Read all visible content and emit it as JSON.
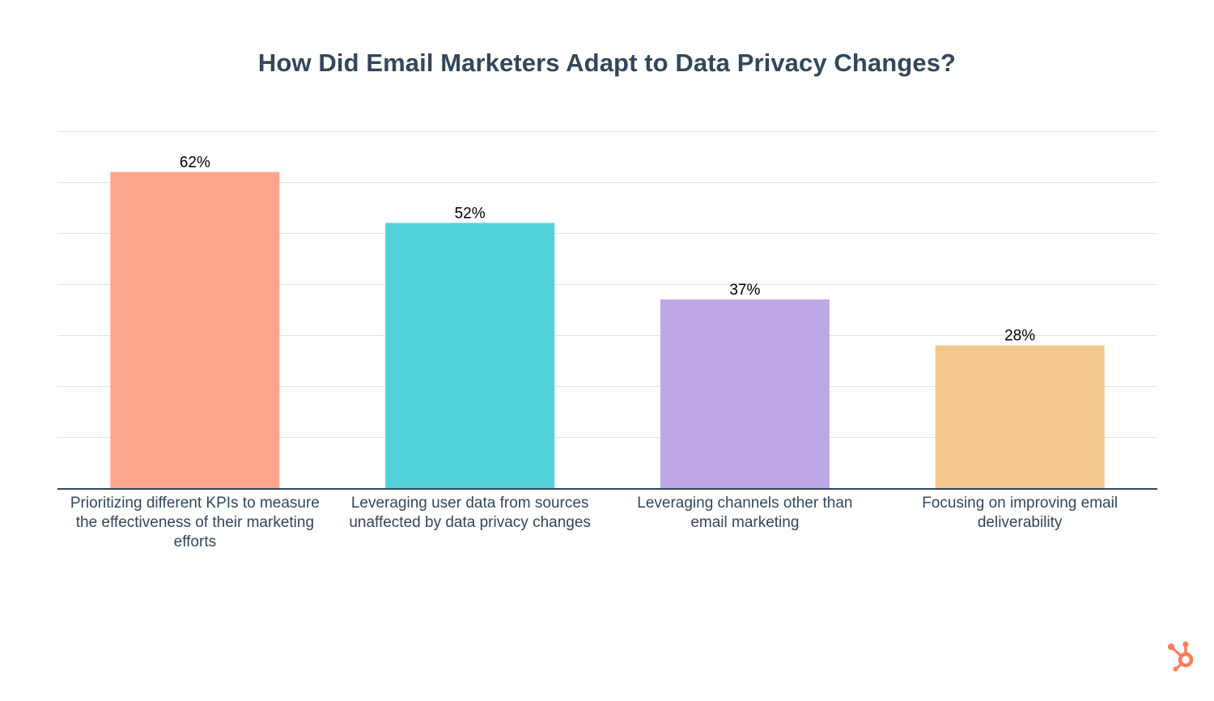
{
  "chart_data": {
    "type": "bar",
    "title": "How Did Email Marketers Adapt to Data Privacy Changes?",
    "xlabel": "",
    "ylabel": "",
    "ylim": [
      0,
      70
    ],
    "y_gridline_step": 10,
    "grid": true,
    "y_tick_labels_visible": false,
    "categories": [
      "Prioritizing different KPIs to measure the effectiveness of their marketing efforts",
      "Leveraging user data from sources unaffected by data privacy changes",
      "Leveraging channels other than email marketing",
      "Focusing on improving email deliverability"
    ],
    "category_lines": [
      [
        "Prioritizing different KPIs to measure",
        "the effectiveness of their marketing",
        "efforts"
      ],
      [
        "Leveraging user data from sources",
        "unaffected by data privacy changes"
      ],
      [
        "Leveraging channels other than",
        "email marketing"
      ],
      [
        "Focusing on improving email",
        "deliverability"
      ]
    ],
    "values": [
      62,
      52,
      37,
      28
    ],
    "data_labels": [
      "62%",
      "52%",
      "37%",
      "28%"
    ],
    "colors": [
      "#fea58e",
      "#51d3d9",
      "#bea7e5",
      "#f5c78e"
    ],
    "unit": "%"
  },
  "branding": {
    "logo": "hubspot-sprocket-icon",
    "logo_color": "#ff7a59"
  },
  "colors": {
    "title": "#33475b",
    "axis": "#33475b",
    "grid": "#dfe3eb",
    "label": "#33475b",
    "data_label": "#000000"
  }
}
